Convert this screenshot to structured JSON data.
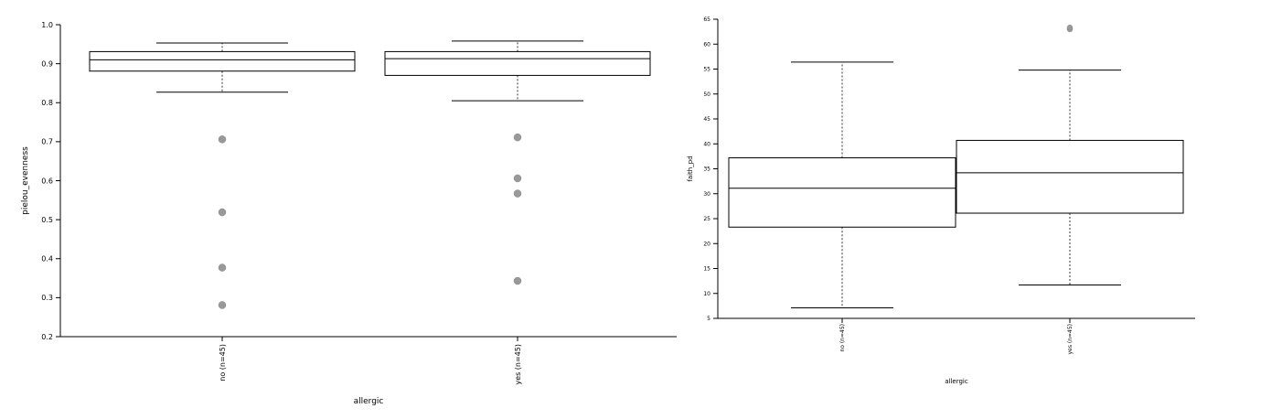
{
  "chart_data": [
    {
      "type": "box",
      "xlabel": "allergic",
      "ylabel": "pielou_evenness",
      "ylim": [
        0.2,
        1.0
      ],
      "yticks": [
        "0.2",
        "0.3",
        "0.4",
        "0.5",
        "0.6",
        "0.7",
        "0.8",
        "0.9",
        "1.0"
      ],
      "categories": [
        "no (n=45)",
        "yes (n=45)"
      ],
      "boxes": [
        {
          "whisker_low": 0.827,
          "q1": 0.881,
          "median": 0.91,
          "q3": 0.931,
          "whisker_high": 0.953,
          "outliers": [
            0.706,
            0.519,
            0.377,
            0.281
          ]
        },
        {
          "whisker_low": 0.805,
          "q1": 0.87,
          "median": 0.913,
          "q3": 0.931,
          "whisker_high": 0.958,
          "outliers": [
            0.711,
            0.606,
            0.567,
            0.343
          ]
        }
      ]
    },
    {
      "type": "box",
      "xlabel": "allergic",
      "ylabel": "faith_pd",
      "ylim": [
        5,
        65
      ],
      "yticks": [
        "5",
        "10",
        "15",
        "20",
        "25",
        "30",
        "35",
        "40",
        "45",
        "50",
        "55",
        "60",
        "65"
      ],
      "categories": [
        "no (n=45)",
        "yes (n=45)"
      ],
      "boxes": [
        {
          "whisker_low": 7.1,
          "q1": 23.3,
          "median": 31.1,
          "q3": 37.2,
          "whisker_high": 56.4,
          "outliers": []
        },
        {
          "whisker_low": 11.7,
          "q1": 26.1,
          "median": 34.2,
          "q3": 40.7,
          "whisker_high": 54.8,
          "outliers": [
            63.0,
            63.3
          ]
        }
      ]
    }
  ]
}
